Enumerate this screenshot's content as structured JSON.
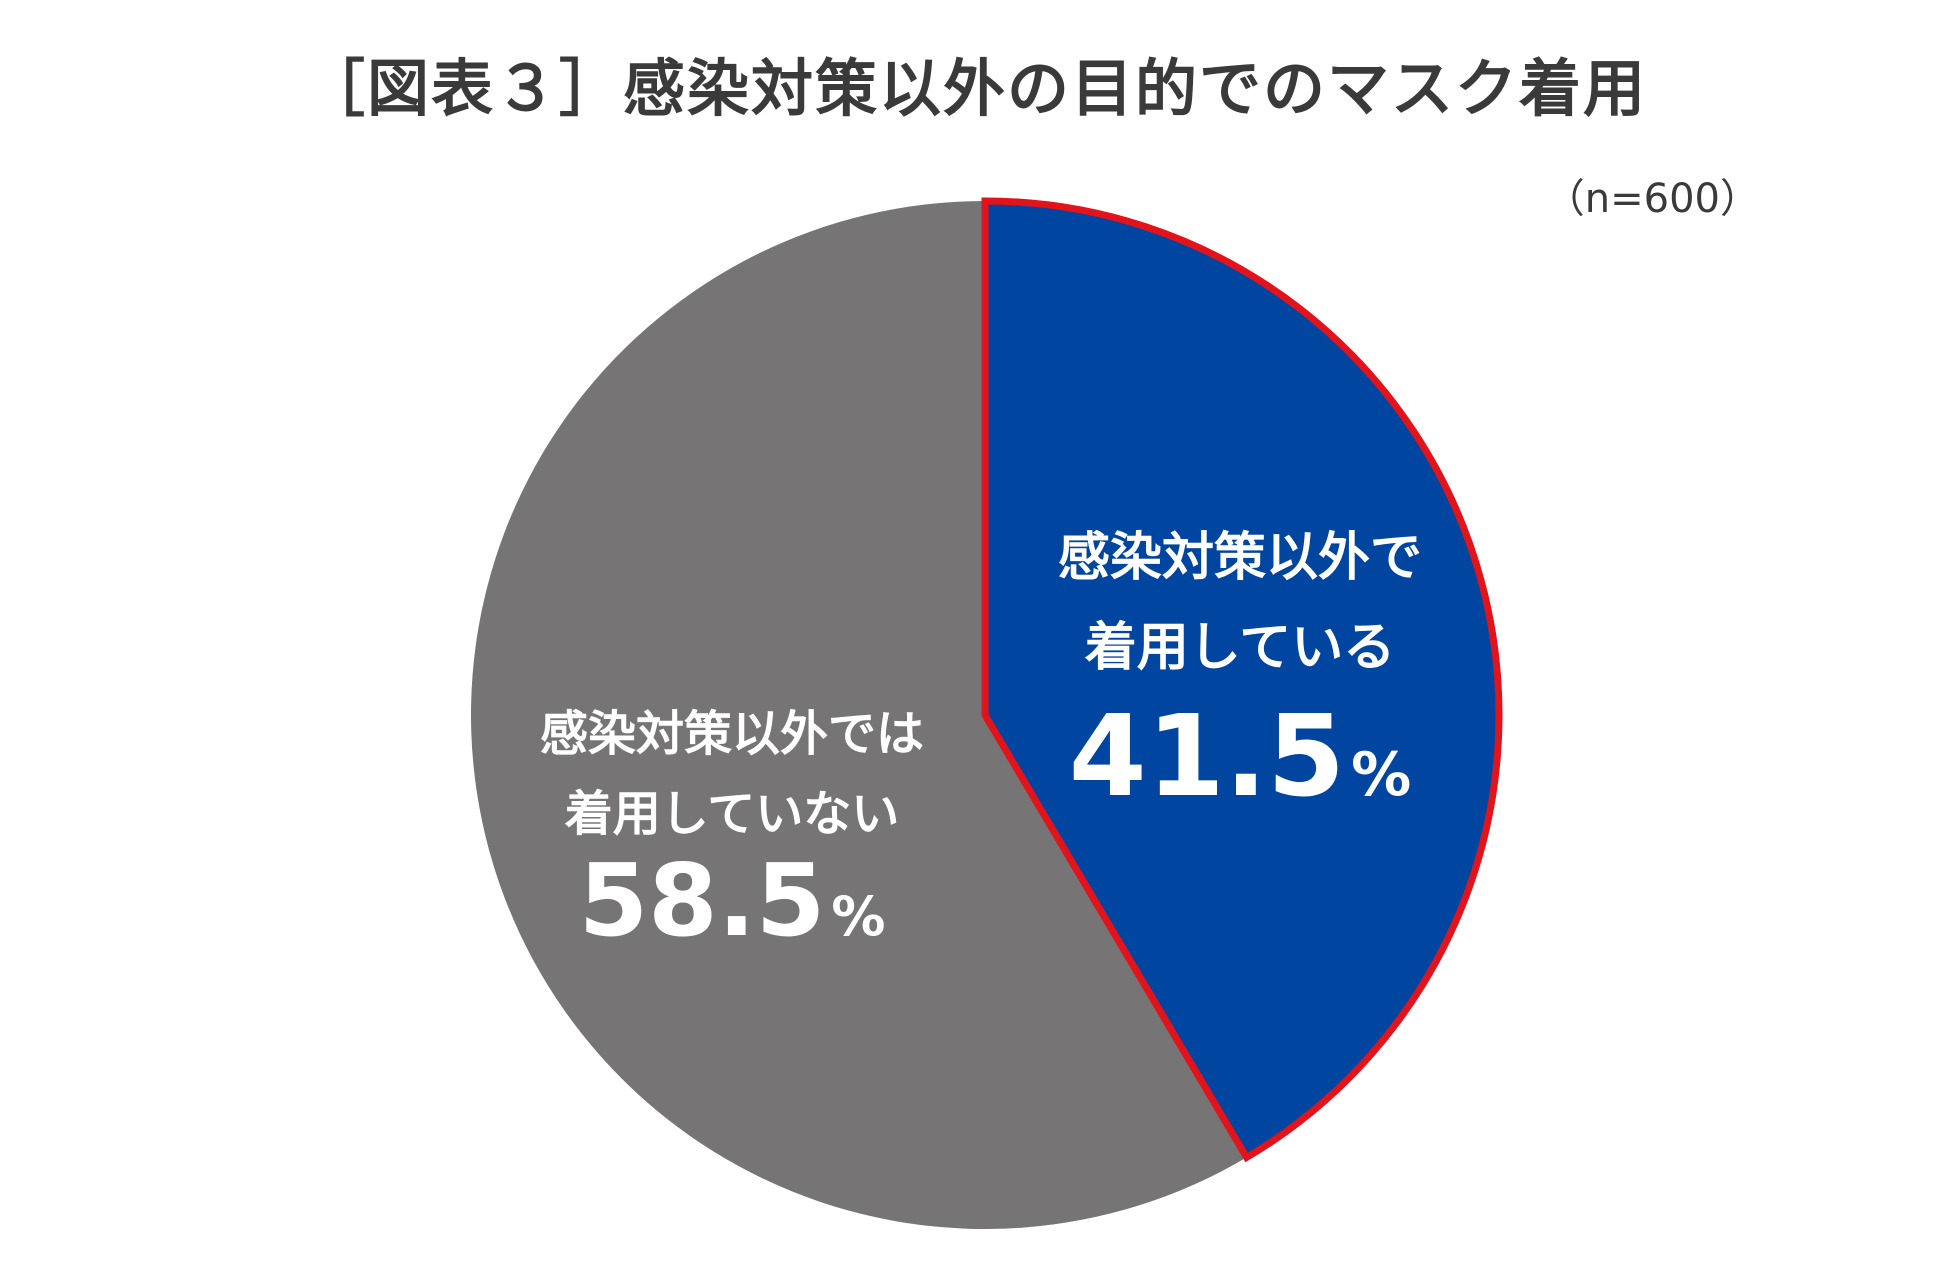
{
  "title": "［図表３］感染対策以外の目的でのマスク着用",
  "sample_size": "（n=600）",
  "colors": {
    "wearing": "#0046A0",
    "not_wearing": "#767474",
    "highlight_border": "#E3131B"
  },
  "chart_data": {
    "type": "pie",
    "title": "［図表３］感染対策以外の目的でのマスク着用",
    "annotation": "（n=600）",
    "slices": [
      {
        "label_lines": [
          "感染対策以外で",
          "着用している"
        ],
        "value": 41.5,
        "value_label": "41.5",
        "unit": "%",
        "color": "#0046A0",
        "highlighted": true
      },
      {
        "label_lines": [
          "感染対策以外では",
          "着用していない"
        ],
        "value": 58.5,
        "value_label": "58.5",
        "unit": "%",
        "color": "#767474",
        "highlighted": false
      }
    ],
    "start": "12 o'clock",
    "direction": "clockwise"
  }
}
